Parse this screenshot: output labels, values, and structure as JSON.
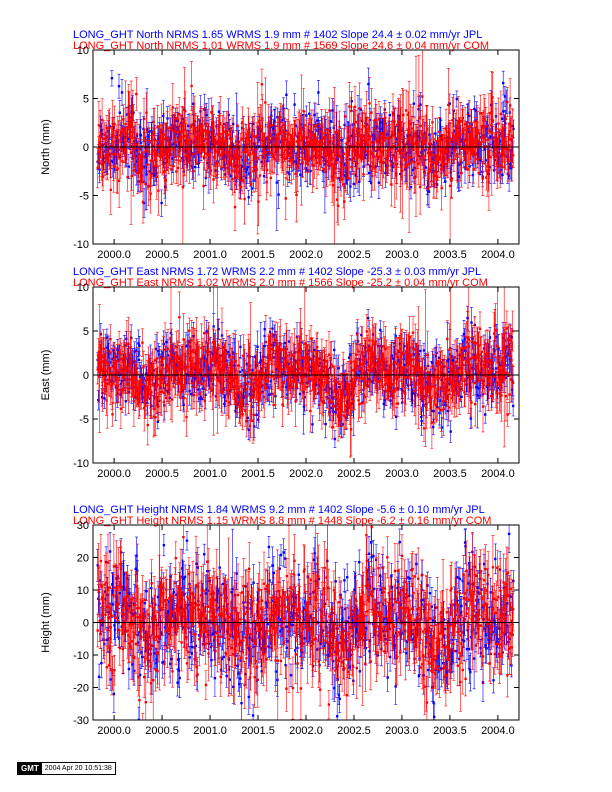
{
  "colors": {
    "jpl": "#0000ff",
    "com": "#ff0000",
    "zero_line": "#000000"
  },
  "chart_data": [
    {
      "type": "scatter",
      "ylabel": "North (mm)",
      "ylim": [
        -10,
        10
      ],
      "yticks": [
        "-10",
        "-5",
        "0",
        "5",
        "10"
      ],
      "xlim": [
        1999.78,
        2004.22
      ],
      "xticks": [
        "2000.0",
        "2000.5",
        "2001.0",
        "2001.5",
        "2002.0",
        "2002.5",
        "2003.0",
        "2003.5",
        "2004.0"
      ],
      "grid": false,
      "legend_placement": "top-left above plot",
      "series": [
        {
          "name": "LONG_GHT North NRMS 1.65 WRMS  1.9 mm # 1402 Slope   24.4 ±  0.02 mm/yr JPL",
          "color": "#0000ff",
          "count": 1402,
          "wrms": 1.9,
          "sigma": 1.2,
          "start": 1999.83,
          "end": 2004.16,
          "amplitude": 1.1,
          "seed": 11
        },
        {
          "name": "LONG_GHT North NRMS 1.01 WRMS  1.9 mm # 1569 Slope   24.6 ±  0.04 mm/yr COM",
          "color": "#ff0000",
          "count": 1569,
          "wrms": 1.9,
          "sigma": 2.0,
          "start": 1999.83,
          "end": 2004.16,
          "amplitude": 1.1,
          "seed": 23
        }
      ]
    },
    {
      "type": "scatter",
      "ylabel": "East (mm)",
      "ylim": [
        -10,
        10
      ],
      "yticks": [
        "-10",
        "-5",
        "0",
        "5",
        "10"
      ],
      "xlim": [
        1999.78,
        2004.22
      ],
      "xticks": [
        "2000.0",
        "2000.5",
        "2001.0",
        "2001.5",
        "2002.0",
        "2002.5",
        "2003.0",
        "2003.5",
        "2004.0"
      ],
      "grid": false,
      "legend_placement": "top-left above plot",
      "series": [
        {
          "name": "LONG_GHT East NRMS 1.72 WRMS  2.2 mm # 1402 Slope  -25.3 ±  0.03 mm/yr JPL",
          "color": "#0000ff",
          "count": 1402,
          "wrms": 2.2,
          "sigma": 1.3,
          "start": 1999.83,
          "end": 2004.16,
          "amplitude": 2.0,
          "seed": 37
        },
        {
          "name": "LONG_GHT East NRMS 1.02 WRMS  2.0 mm # 1566 Slope  -25.2 ±  0.04 mm/yr COM",
          "color": "#ff0000",
          "count": 1566,
          "wrms": 2.0,
          "sigma": 2.2,
          "start": 1999.83,
          "end": 2004.16,
          "amplitude": 2.0,
          "seed": 41
        }
      ]
    },
    {
      "type": "scatter",
      "ylabel": "Height (mm)",
      "ylim": [
        -30,
        30
      ],
      "yticks": [
        "-30",
        "-20",
        "-10",
        "0",
        "10",
        "20",
        "30"
      ],
      "xlim": [
        1999.78,
        2004.22
      ],
      "xticks": [
        "2000.0",
        "2000.5",
        "2001.0",
        "2001.5",
        "2002.0",
        "2002.5",
        "2003.0",
        "2003.5",
        "2004.0"
      ],
      "grid": false,
      "legend_placement": "top-left above plot",
      "series": [
        {
          "name": "LONG_GHT Height NRMS 1.84 WRMS  9.2 mm # 1402 Slope   -5.6 ±  0.10 mm/yr JPL",
          "color": "#0000ff",
          "count": 1402,
          "wrms": 9.2,
          "sigma": 4.5,
          "start": 1999.83,
          "end": 2004.16,
          "amplitude": 7.0,
          "seed": 53
        },
        {
          "name": "LONG_GHT Height NRMS 1.15 WRMS  8.8 mm # 1448 Slope   -6.2 ±  0.16 mm/yr COM",
          "color": "#ff0000",
          "count": 1448,
          "wrms": 8.8,
          "sigma": 7.0,
          "start": 1999.83,
          "end": 2004.16,
          "amplitude": 7.0,
          "seed": 67
        }
      ]
    }
  ],
  "footer": {
    "logo": "GMT",
    "timestamp": "2004 Apr 20 10:51:38"
  }
}
